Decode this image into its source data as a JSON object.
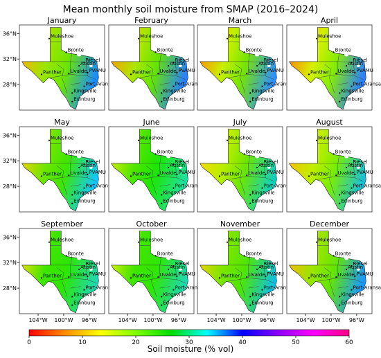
{
  "title": "Mean monthly soil moisture from SMAP (2016–2024)",
  "months": [
    "January",
    "February",
    "March",
    "April",
    "May",
    "June",
    "July",
    "August",
    "September",
    "October",
    "November",
    "December"
  ],
  "lat_ticks": [
    "36°N",
    "32°N",
    "28°N"
  ],
  "lon_ticks": [
    "104°W",
    "100°W",
    "96°W"
  ],
  "cities": [
    "Muleshoe",
    "Bronte",
    "Riesel",
    "Austin",
    "PVAMU",
    "Uvalde",
    "Panther",
    "Port-Aransas",
    "Kingsville",
    "Edinburg"
  ],
  "colorbar": {
    "label": "Soil moisture (% vol)",
    "ticks": [
      "0",
      "10",
      "20",
      "30",
      "40",
      "50",
      "60"
    ],
    "range": [
      0,
      60
    ],
    "colors": [
      "#ff0000",
      "#ff8c00",
      "#ffff00",
      "#7fff00",
      "#00dd00",
      "#00ffff",
      "#0000ff",
      "#8a00ff",
      "#ff00ff",
      "#ff0080"
    ]
  },
  "panel_palettes": {
    "January": {
      "west": "#ffb000",
      "central": "#6ee600",
      "east": "#1a8cff",
      "south": "#9be600"
    },
    "February": {
      "west": "#ff9600",
      "central": "#66e600",
      "east": "#2a7fff",
      "south": "#aee600"
    },
    "March": {
      "west": "#ff8a00",
      "central": "#78e600",
      "east": "#3090ff",
      "south": "#c8f000"
    },
    "April": {
      "west": "#ff7a00",
      "central": "#8aee00",
      "east": "#2a80ff",
      "south": "#d6f000"
    },
    "May": {
      "west": "#ffd000",
      "central": "#3ee600",
      "east": "#10c8ff",
      "south": "#6ee600"
    },
    "June": {
      "west": "#ddee00",
      "central": "#1ee600",
      "east": "#20e0a0",
      "south": "#4ee600"
    },
    "July": {
      "west": "#ffd800",
      "central": "#6ee600",
      "east": "#10d0c0",
      "south": "#b8ee00"
    },
    "August": {
      "west": "#ffb800",
      "central": "#7eee00",
      "east": "#18c0d8",
      "south": "#c0ee00"
    },
    "September": {
      "west": "#ffe000",
      "central": "#2ee600",
      "east": "#20d8b0",
      "south": "#3ee600"
    },
    "October": {
      "west": "#eaf000",
      "central": "#30e600",
      "east": "#20d8b0",
      "south": "#40e600"
    },
    "November": {
      "west": "#ffd000",
      "central": "#50e600",
      "east": "#10c0e0",
      "south": "#7ae600"
    },
    "December": {
      "west": "#ffb400",
      "central": "#66e600",
      "east": "#1898ff",
      "south": "#9ae600"
    }
  }
}
